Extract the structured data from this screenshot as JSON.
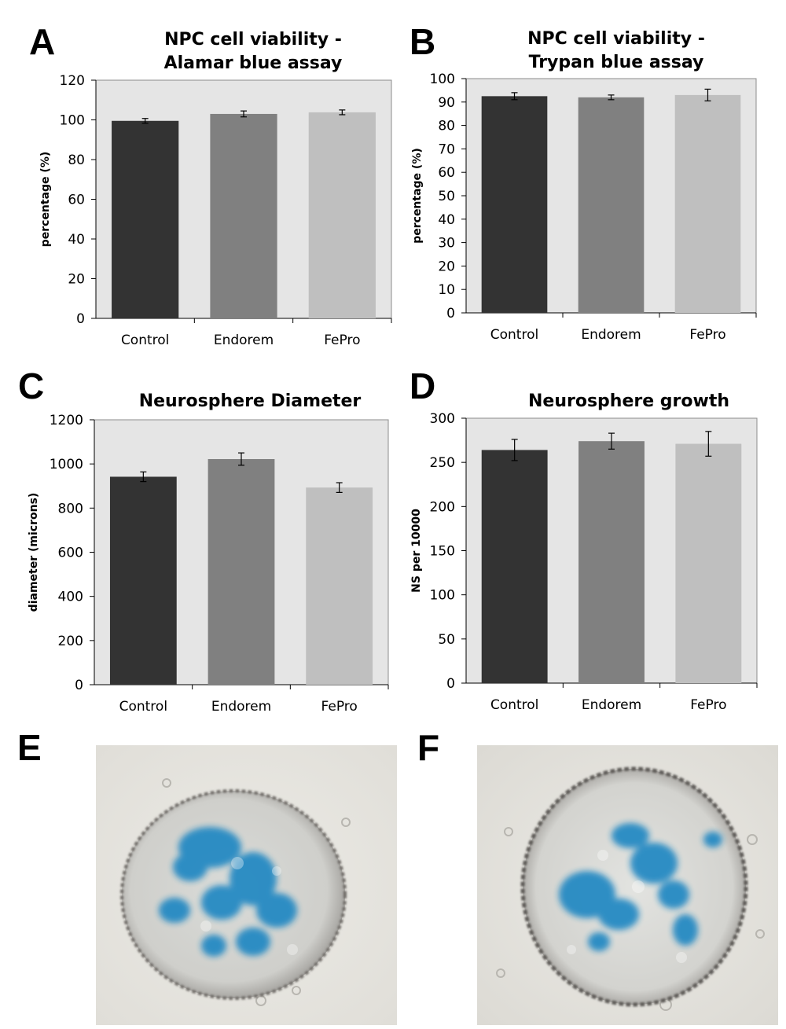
{
  "panels": [
    {
      "letter": "A"
    },
    {
      "letter": "B"
    },
    {
      "letter": "C"
    },
    {
      "letter": "D"
    },
    {
      "letter": "E"
    },
    {
      "letter": "F"
    }
  ],
  "colors": {
    "plot_background": "#e5e5e5",
    "bar_control": "#333333",
    "bar_endorem": "#808080",
    "bar_fepro": "#bfbfbf",
    "stain_blue": "#2a8fc4",
    "micro_background": "#ecebe6"
  },
  "chart_data": [
    {
      "type": "bar",
      "title_lines": [
        "NPC cell viability -",
        "Alamar blue assay"
      ],
      "categories": [
        "Control",
        "Endorem",
        "FePro"
      ],
      "values": [
        99.5,
        103,
        103.8
      ],
      "errors": [
        1.2,
        1.5,
        1.2
      ],
      "ylabel": "percentage (%)",
      "xlabel": "",
      "ylim": [
        0,
        120
      ],
      "yticks": [
        0,
        20,
        40,
        60,
        80,
        100,
        120
      ],
      "grid": false,
      "legend": "none"
    },
    {
      "type": "bar",
      "title_lines": [
        "NPC cell viability -",
        "Trypan blue assay"
      ],
      "categories": [
        "Control",
        "Endorem",
        "FePro"
      ],
      "values": [
        92.5,
        92,
        93
      ],
      "errors": [
        1.5,
        1,
        2.5
      ],
      "ylabel": "percentage (%)",
      "xlabel": "",
      "ylim": [
        0,
        100
      ],
      "yticks": [
        0,
        10,
        20,
        30,
        40,
        50,
        60,
        70,
        80,
        90,
        100
      ],
      "grid": false,
      "legend": "none"
    },
    {
      "type": "bar",
      "title_lines": [
        "Neurosphere Diameter"
      ],
      "categories": [
        "Control",
        "Endorem",
        "FePro"
      ],
      "values": [
        942,
        1022,
        893
      ],
      "errors": [
        22,
        28,
        22
      ],
      "ylabel": "diameter (microns)",
      "xlabel": "",
      "ylim": [
        0,
        1200
      ],
      "yticks": [
        0,
        200,
        400,
        600,
        800,
        1000,
        1200
      ],
      "grid": false,
      "legend": "none"
    },
    {
      "type": "bar",
      "title_lines": [
        "Neurosphere growth"
      ],
      "categories": [
        "Control",
        "Endorem",
        "FePro"
      ],
      "values": [
        264,
        274,
        271
      ],
      "errors": [
        12,
        9,
        14
      ],
      "ylabel": "NS per 10000",
      "xlabel": "",
      "ylim": [
        0,
        300
      ],
      "yticks": [
        0,
        50,
        100,
        150,
        200,
        250,
        300
      ],
      "grid": false,
      "legend": "none"
    }
  ]
}
